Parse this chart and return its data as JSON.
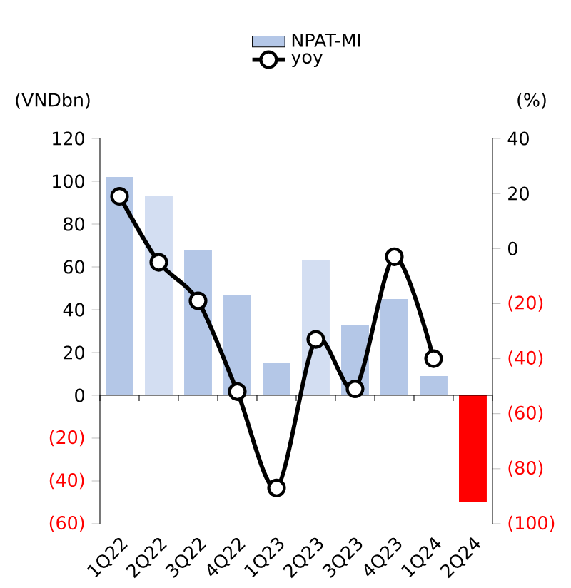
{
  "chart_data": {
    "type": "bar",
    "categories": [
      "1Q22",
      "2Q22",
      "3Q22",
      "4Q22",
      "1Q23",
      "2Q23",
      "3Q23",
      "4Q23",
      "1Q24",
      "2Q24"
    ],
    "series": [
      {
        "name": "NPAT-MI",
        "colors": [
          "#b4c7e7",
          "#d3def2",
          "#b4c7e7",
          "#b4c7e7",
          "#b4c7e7",
          "#d3def2",
          "#b4c7e7",
          "#b4c7e7",
          "#b4c7e7",
          "#ff0000"
        ],
        "values": [
          102,
          93,
          68,
          47,
          15,
          63,
          33,
          45,
          9,
          -50
        ]
      },
      {
        "name": "yoy",
        "type": "line",
        "axis": "y2",
        "color": "#000000",
        "marker": "circle",
        "values": [
          19,
          -5,
          -19,
          -52,
          -87,
          -33,
          -51,
          -3,
          -40,
          null
        ]
      }
    ],
    "ylabel": "(VNDbn)",
    "y2label": "(%)",
    "ylim": [
      -60,
      120
    ],
    "yticks": [
      {
        "value": -60,
        "label": "(60)"
      },
      {
        "value": -40,
        "label": "(40)"
      },
      {
        "value": -20,
        "label": "(20)"
      },
      0,
      20,
      40,
      60,
      80,
      100,
      120
    ],
    "y2lim": [
      -100,
      40
    ],
    "y2ticks": [
      {
        "value": -100,
        "label": "(100)"
      },
      {
        "value": -80,
        "label": "(80)"
      },
      {
        "value": -60,
        "label": "(60)"
      },
      {
        "value": -40,
        "label": "(40)"
      },
      {
        "value": -20,
        "label": "(20)"
      },
      0,
      20,
      40
    ],
    "legend": "top"
  }
}
